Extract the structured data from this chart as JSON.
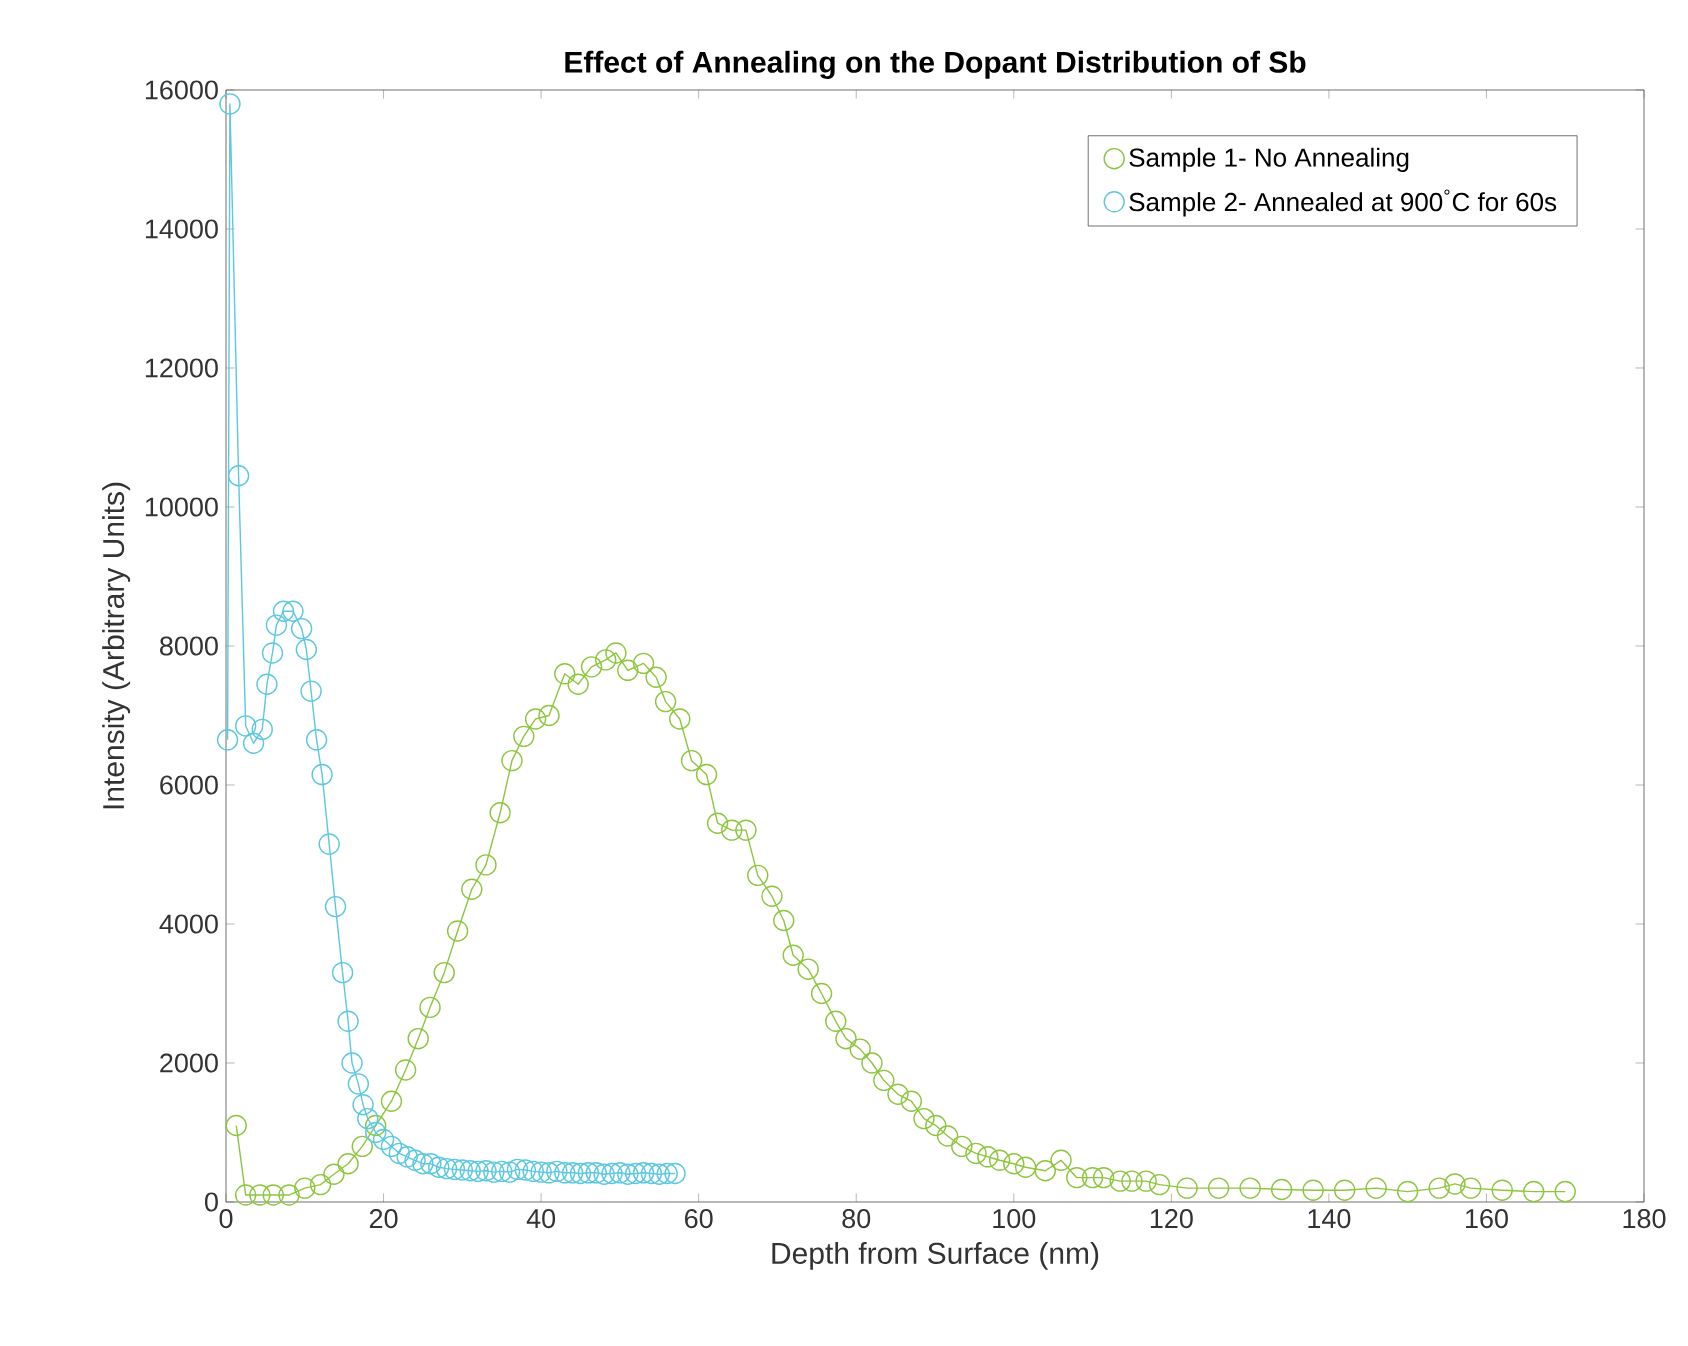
{
  "chart_data": {
    "type": "line",
    "title": "Effect of Annealing on the Dopant Distribution of Sb",
    "xlabel": "Depth from Surface (nm)",
    "ylabel": "Intensity (Arbitrary Units)",
    "xlim": [
      0,
      180
    ],
    "ylim": [
      0,
      16000
    ],
    "xticks": [
      0,
      20,
      40,
      60,
      80,
      100,
      120,
      140,
      160,
      180
    ],
    "yticks": [
      0,
      2000,
      4000,
      6000,
      8000,
      10000,
      12000,
      14000,
      16000
    ],
    "grid": false,
    "legend": "top right",
    "marker": "circle",
    "line_style": "solid",
    "series": [
      {
        "name": "Sample 1- No Annealing",
        "color": "#8cc63e",
        "x": [
          1.3,
          2.5,
          4.3,
          6,
          8,
          10,
          12,
          13.7,
          15.5,
          17.3,
          19,
          21,
          22.8,
          24.4,
          25.9,
          27.7,
          29.4,
          31.2,
          33,
          34.8,
          36.3,
          37.8,
          39.3,
          41,
          43,
          44.7,
          46.4,
          48.2,
          49.5,
          51,
          53,
          54.6,
          55.8,
          57.6,
          59.1,
          61,
          62.4,
          64.2,
          66,
          67.5,
          69.3,
          70.8,
          72,
          73.9,
          75.6,
          77.4,
          78.7,
          80.5,
          82,
          83.5,
          85.3,
          87,
          88.6,
          90.1,
          91.6,
          93.4,
          95.2,
          96.7,
          98.2,
          100,
          101.5,
          104,
          106,
          108,
          110,
          111.4,
          113.5,
          115,
          116.8,
          118.5,
          122,
          126,
          130,
          134,
          138,
          142,
          146,
          150,
          154,
          156,
          158,
          162,
          166,
          170
        ],
        "values": [
          1100,
          100,
          100,
          100,
          100,
          200,
          250,
          400,
          550,
          800,
          1100,
          1450,
          1900,
          2350,
          2800,
          3300,
          3900,
          4500,
          4850,
          5600,
          6350,
          6700,
          6950,
          7000,
          7600,
          7450,
          7700,
          7800,
          7900,
          7650,
          7750,
          7550,
          7200,
          6950,
          6350,
          6150,
          5450,
          5350,
          5350,
          4700,
          4400,
          4050,
          3550,
          3350,
          3000,
          2600,
          2350,
          2200,
          2000,
          1750,
          1550,
          1450,
          1200,
          1100,
          950,
          800,
          700,
          650,
          600,
          550,
          500,
          450,
          600,
          350,
          350,
          350,
          300,
          300,
          300,
          250,
          200,
          200,
          200,
          180,
          170,
          170,
          200,
          150,
          200,
          260,
          200,
          170,
          150,
          150
        ]
      },
      {
        "name": "Sample 2- Annealed at 900$^{°}$C for 60s",
        "color": "#5bc8e0",
        "x": [
          0.2,
          0.5,
          1.6,
          2.5,
          3.5,
          4.6,
          5.2,
          5.9,
          6.4,
          7.3,
          8.5,
          9.6,
          10.2,
          10.8,
          11.5,
          12.2,
          13.1,
          13.9,
          14.8,
          15.5,
          16,
          16.8,
          17.4,
          18,
          19,
          20,
          21,
          22,
          23,
          24,
          25,
          26,
          27,
          28,
          29,
          30,
          31,
          32,
          33,
          34,
          35,
          36,
          37,
          38,
          39,
          40,
          41,
          42,
          43,
          44,
          45,
          46,
          47,
          48,
          49,
          50,
          51,
          52,
          53,
          54,
          55,
          56,
          57
        ],
        "values": [
          6650,
          15800,
          10450,
          6850,
          6600,
          6800,
          7450,
          7900,
          8300,
          8500,
          8500,
          8250,
          7950,
          7350,
          6650,
          6150,
          5150,
          4250,
          3300,
          2600,
          2000,
          1700,
          1400,
          1200,
          1000,
          900,
          800,
          700,
          650,
          600,
          550,
          550,
          500,
          480,
          470,
          460,
          450,
          440,
          450,
          430,
          440,
          430,
          470,
          460,
          440,
          430,
          420,
          440,
          420,
          420,
          410,
          420,
          420,
          400,
          410,
          420,
          400,
          410,
          420,
          410,
          400,
          410,
          410
        ]
      }
    ]
  }
}
